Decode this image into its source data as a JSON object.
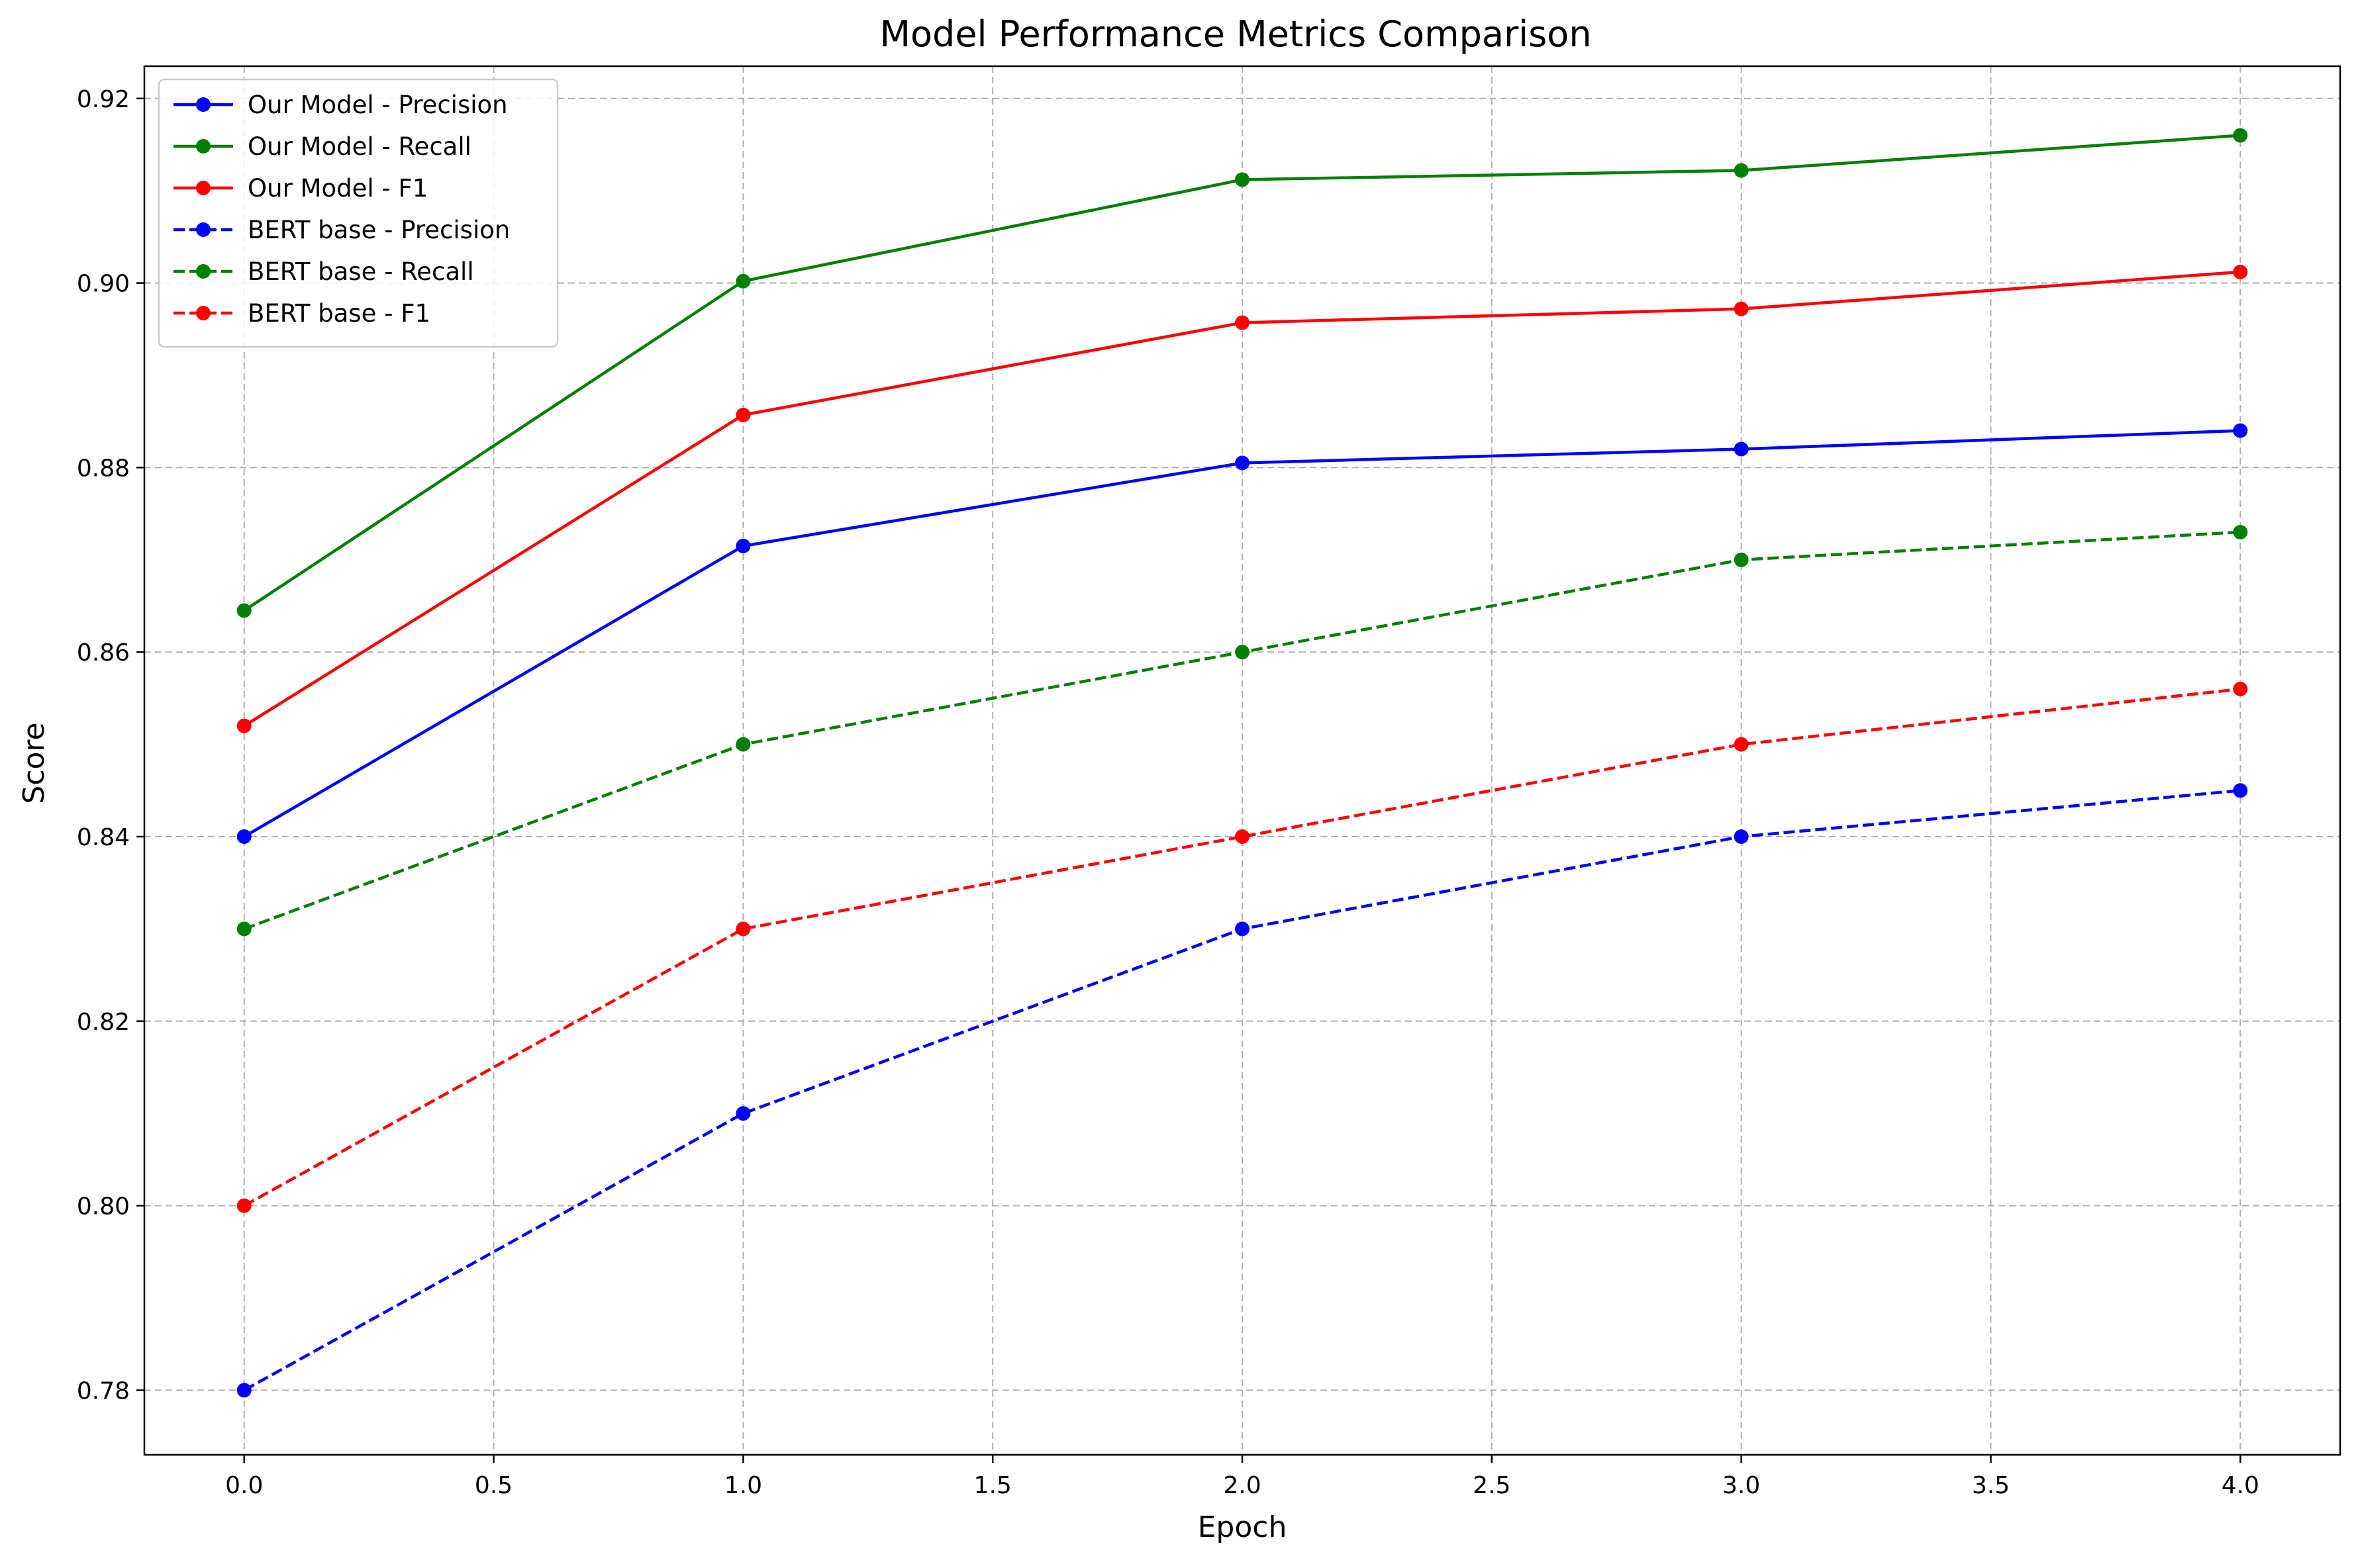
{
  "chart_data": {
    "type": "line",
    "title": "Model Performance Metrics Comparison",
    "xlabel": "Epoch",
    "ylabel": "Score",
    "xlim": [
      -0.2,
      4.2
    ],
    "ylim": [
      0.773,
      0.9235
    ],
    "x": [
      0,
      1,
      2,
      3,
      4
    ],
    "xticks": [
      0.0,
      0.5,
      1.0,
      1.5,
      2.0,
      2.5,
      3.0,
      3.5,
      4.0
    ],
    "xtick_labels": [
      "0.0",
      "0.5",
      "1.0",
      "1.5",
      "2.0",
      "2.5",
      "3.0",
      "3.5",
      "4.0"
    ],
    "yticks": [
      0.78,
      0.8,
      0.82,
      0.84,
      0.86,
      0.88,
      0.9,
      0.92
    ],
    "ytick_labels": [
      "0.78",
      "0.80",
      "0.82",
      "0.84",
      "0.86",
      "0.88",
      "0.90",
      "0.92"
    ],
    "grid": true,
    "grid_style": "dashed",
    "legend_position": "top-left",
    "series": [
      {
        "name": "Our Model - Precision",
        "color": "#0000ff",
        "linestyle": "solid",
        "marker": "circle",
        "values": [
          0.84,
          0.8715,
          0.8805,
          0.882,
          0.884
        ]
      },
      {
        "name": "Our Model - Recall",
        "color": "#008000",
        "linestyle": "solid",
        "marker": "circle",
        "values": [
          0.8645,
          0.9002,
          0.9112,
          0.9122,
          0.916
        ]
      },
      {
        "name": "Our Model - F1",
        "color": "#ff0000",
        "linestyle": "solid",
        "marker": "circle",
        "values": [
          0.852,
          0.8857,
          0.8957,
          0.8972,
          0.9012
        ]
      },
      {
        "name": "BERT base - Precision",
        "color": "#0000ff",
        "linestyle": "dashed",
        "marker": "circle",
        "values": [
          0.78,
          0.81,
          0.83,
          0.84,
          0.845
        ]
      },
      {
        "name": "BERT base - Recall",
        "color": "#008000",
        "linestyle": "dashed",
        "marker": "circle",
        "values": [
          0.83,
          0.85,
          0.86,
          0.87,
          0.873
        ]
      },
      {
        "name": "BERT base - F1",
        "color": "#ff0000",
        "linestyle": "dashed",
        "marker": "circle",
        "values": [
          0.8,
          0.83,
          0.84,
          0.85,
          0.856
        ]
      }
    ]
  }
}
